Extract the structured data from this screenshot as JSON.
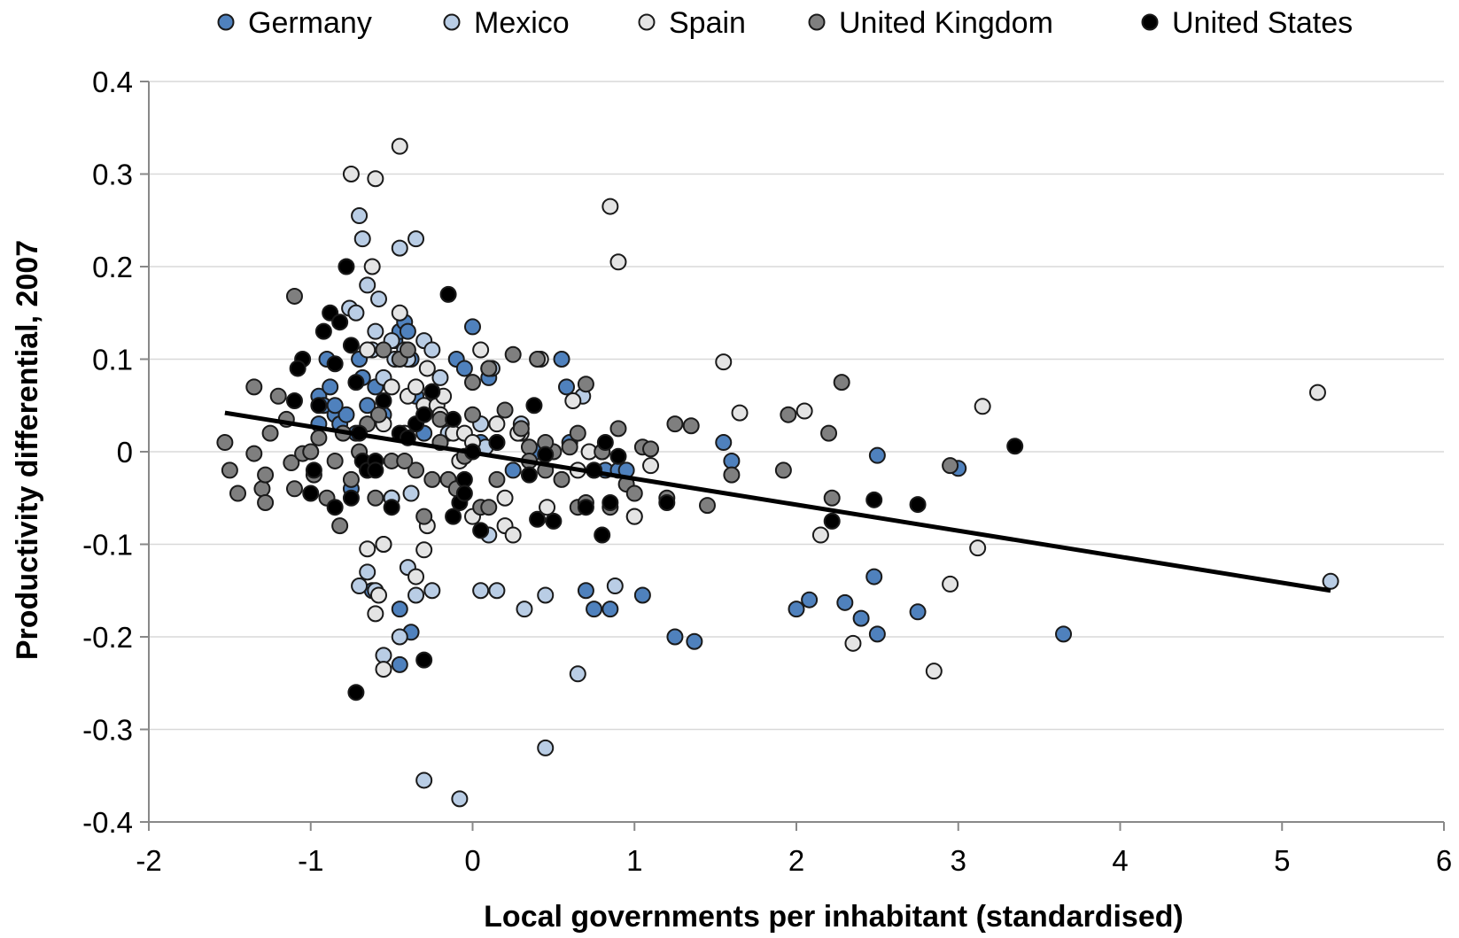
{
  "chart_data": {
    "type": "scatter",
    "title": "",
    "xlabel": "Local governments per inhabitant (standardised)",
    "ylabel": "Productivity differential, 2007",
    "xlim": [
      -2,
      6
    ],
    "ylim": [
      -0.4,
      0.4
    ],
    "x_ticks": [
      -2,
      -1,
      0,
      1,
      2,
      3,
      4,
      5,
      6
    ],
    "y_ticks": [
      -0.4,
      -0.3,
      -0.2,
      -0.1,
      0,
      0.1,
      0.2,
      0.3,
      0.4
    ],
    "x_tick_labels": [
      "-2",
      "-1",
      "0",
      "1",
      "2",
      "3",
      "4",
      "5",
      "6"
    ],
    "y_tick_labels": [
      "-0.4",
      "-0.3",
      "-0.2",
      "-0.1",
      "0",
      "0.1",
      "0.2",
      "0.3",
      "0.4"
    ],
    "grid": "horizontal",
    "legend_position": "top",
    "trendline": {
      "x": [
        -1.53,
        5.3
      ],
      "y": [
        0.042,
        -0.15
      ]
    },
    "series": [
      {
        "name": "Germany",
        "color": "#4f81bd",
        "x": [
          -0.95,
          -0.92,
          -0.9,
          -0.88,
          -0.85,
          -0.82,
          -0.78,
          -0.75,
          -0.72,
          -0.7,
          -0.68,
          -0.65,
          -0.6,
          -0.55,
          -0.5,
          -0.48,
          -0.45,
          -0.42,
          -0.4,
          -0.38,
          -0.35,
          -0.3,
          -0.25,
          -0.2,
          -0.1,
          -0.05,
          0,
          0.05,
          0.1,
          0.15,
          0.25,
          0.4,
          0.55,
          0.58,
          0.6,
          0.7,
          0.75,
          0.8,
          0.82,
          0.85,
          0.9,
          0.95,
          1.05,
          1.25,
          1.37,
          1.55,
          1.6,
          2.0,
          2.08,
          2.3,
          2.4,
          2.48,
          2.5,
          2.5,
          2.75,
          3.0,
          3.65,
          -0.45,
          -0.38,
          -0.45,
          -0.62,
          -0.85,
          -0.95
        ],
        "y": [
          0.06,
          0.05,
          0.1,
          0.07,
          0.04,
          0.03,
          0.04,
          -0.04,
          0.02,
          0.1,
          0.08,
          0.05,
          0.07,
          0.04,
          -0.05,
          0.12,
          0.13,
          0.14,
          0.13,
          0.1,
          0.06,
          0.02,
          0.05,
          0.01,
          0.1,
          0.09,
          0.135,
          0.01,
          0.08,
          0.01,
          -0.02,
          0.0,
          0.1,
          0.07,
          0.01,
          -0.15,
          -0.17,
          0.0,
          -0.02,
          -0.17,
          -0.02,
          -0.02,
          -0.155,
          -0.2,
          -0.205,
          0.01,
          -0.01,
          -0.17,
          -0.16,
          -0.163,
          -0.18,
          -0.135,
          -0.197,
          -0.004,
          -0.173,
          -0.018,
          -0.197,
          -0.17,
          -0.195,
          -0.23,
          -0.15,
          0.05,
          0.03
        ]
      },
      {
        "name": "Mexico",
        "color": "#b9cde5",
        "x": [
          -0.76,
          -0.72,
          -0.7,
          -0.68,
          -0.65,
          -0.62,
          -0.6,
          -0.58,
          -0.55,
          -0.5,
          -0.48,
          -0.45,
          -0.42,
          -0.4,
          -0.35,
          -0.3,
          -0.25,
          -0.2,
          -0.15,
          0.05,
          0.08,
          0.1,
          0.15,
          0.32,
          0.45,
          0.65,
          0.88,
          1.0,
          0.45,
          -0.3,
          -0.08,
          0.12,
          -0.55,
          -0.65,
          -0.7,
          -0.45,
          -0.35,
          -0.25,
          -0.4,
          -0.5,
          0.3,
          0.68,
          0.05,
          5.3,
          -0.38,
          -0.6,
          -0.55
        ],
        "y": [
          0.155,
          0.15,
          0.255,
          0.23,
          0.18,
          0.11,
          0.13,
          0.165,
          0.08,
          0.12,
          0.1,
          0.22,
          0.11,
          0.1,
          0.23,
          0.12,
          0.11,
          0.08,
          0.02,
          0.03,
          0.005,
          -0.09,
          -0.15,
          -0.17,
          -0.155,
          -0.24,
          -0.145,
          -0.07,
          -0.32,
          -0.355,
          -0.375,
          0.09,
          -0.1,
          -0.13,
          -0.145,
          -0.2,
          -0.155,
          -0.15,
          -0.125,
          -0.05,
          0.03,
          0.06,
          -0.15,
          -0.14,
          -0.045,
          -0.15,
          -0.22
        ]
      },
      {
        "name": "Spain",
        "color": "#e4e4e4",
        "x": [
          -0.75,
          -0.6,
          -0.62,
          -0.65,
          -0.55,
          -0.5,
          -0.45,
          -0.4,
          -0.35,
          -0.3,
          -0.28,
          -0.22,
          -0.18,
          -0.12,
          -0.08,
          -0.05,
          0.0,
          0.05,
          0.1,
          0.15,
          0.2,
          0.25,
          0.3,
          0.42,
          0.46,
          0.62,
          0.65,
          0.72,
          0.85,
          0.9,
          1.0,
          1.1,
          1.55,
          1.65,
          2.05,
          2.15,
          2.35,
          2.85,
          2.95,
          3.12,
          3.15,
          5.22,
          -0.6,
          -0.58,
          -0.55,
          -0.45,
          -0.35,
          -0.3,
          -0.28,
          -0.2,
          0.0,
          0.2,
          0.28,
          -0.65,
          -0.55,
          -0.42
        ],
        "y": [
          0.3,
          0.295,
          0.2,
          0.11,
          0.03,
          0.07,
          0.33,
          0.06,
          0.07,
          0.05,
          0.09,
          0.05,
          0.06,
          0.02,
          -0.01,
          0.02,
          0.01,
          0.11,
          0.09,
          0.03,
          -0.08,
          -0.09,
          0.02,
          0.1,
          -0.06,
          0.055,
          -0.02,
          0.0,
          0.265,
          0.205,
          -0.07,
          -0.015,
          0.097,
          0.042,
          0.044,
          -0.09,
          -0.207,
          -0.237,
          -0.143,
          -0.104,
          0.049,
          0.064,
          -0.175,
          -0.155,
          -0.1,
          0.15,
          -0.135,
          -0.106,
          -0.08,
          0.04,
          -0.07,
          -0.05,
          0.02,
          -0.105,
          -0.235,
          0.02
        ]
      },
      {
        "name": "United Kingdom",
        "color": "#7f7f7f",
        "x": [
          -1.53,
          -1.5,
          -1.45,
          -1.35,
          -1.3,
          -1.28,
          -1.25,
          -1.2,
          -1.15,
          -1.12,
          -1.1,
          -1.05,
          -1.0,
          -0.98,
          -0.95,
          -0.9,
          -0.85,
          -0.8,
          -0.75,
          -0.7,
          -0.65,
          -0.6,
          -0.55,
          -0.5,
          -0.45,
          -0.4,
          -0.35,
          -0.3,
          -0.25,
          -0.2,
          -0.15,
          -0.1,
          -0.05,
          0.0,
          0.05,
          0.1,
          0.15,
          0.2,
          0.25,
          0.3,
          0.35,
          0.4,
          0.45,
          0.5,
          0.55,
          0.6,
          0.65,
          0.7,
          0.75,
          0.8,
          0.85,
          0.9,
          0.95,
          1.0,
          1.05,
          1.1,
          1.2,
          1.25,
          1.35,
          1.45,
          1.6,
          1.92,
          1.95,
          2.2,
          2.22,
          2.28,
          2.95,
          -1.1,
          -0.65,
          -0.58,
          -0.42,
          -0.3,
          -0.2,
          0.0,
          0.1,
          0.35,
          0.45,
          0.65,
          0.7,
          -0.82,
          -1.28,
          -1.35
        ],
        "y": [
          0.01,
          -0.02,
          -0.045,
          -0.002,
          -0.04,
          -0.055,
          0.02,
          0.06,
          0.035,
          -0.012,
          -0.04,
          -0.002,
          0.0,
          -0.025,
          0.015,
          -0.05,
          -0.01,
          0.02,
          -0.03,
          0.0,
          0.03,
          -0.05,
          0.11,
          -0.01,
          0.1,
          0.11,
          -0.02,
          0.04,
          -0.03,
          0.01,
          -0.03,
          -0.04,
          -0.005,
          0.04,
          -0.06,
          0.09,
          -0.03,
          0.045,
          0.105,
          0.025,
          0.005,
          0.1,
          -0.02,
          0.0,
          -0.03,
          0.005,
          0.02,
          0.073,
          -0.02,
          0.0,
          -0.06,
          0.025,
          -0.035,
          -0.045,
          0.005,
          0.003,
          -0.05,
          0.03,
          0.028,
          -0.058,
          -0.025,
          -0.02,
          0.04,
          0.02,
          -0.05,
          0.075,
          -0.015,
          0.168,
          -0.02,
          0.04,
          -0.01,
          -0.07,
          0.035,
          0.075,
          -0.06,
          -0.01,
          0.01,
          -0.06,
          -0.055,
          -0.08,
          -0.025,
          0.07
        ]
      },
      {
        "name": "United States",
        "color": "#000000",
        "x": [
          -1.1,
          -1.05,
          -1.0,
          -0.98,
          -0.95,
          -0.92,
          -0.88,
          -0.85,
          -0.82,
          -0.78,
          -0.75,
          -0.72,
          -0.7,
          -0.68,
          -0.65,
          -0.6,
          -0.55,
          -0.5,
          -0.45,
          -0.4,
          -0.35,
          -0.3,
          -0.25,
          -0.15,
          -0.12,
          -0.08,
          -0.05,
          0.0,
          0.05,
          0.15,
          0.35,
          0.38,
          0.4,
          0.45,
          0.5,
          0.7,
          0.75,
          0.8,
          0.82,
          0.85,
          0.9,
          1.2,
          2.22,
          2.48,
          2.75,
          3.35,
          -0.72,
          -0.3,
          -0.6,
          -0.12,
          -0.05,
          -1.08,
          -0.85,
          -0.75
        ],
        "y": [
          0.055,
          0.1,
          -0.045,
          -0.02,
          0.05,
          0.13,
          0.15,
          0.095,
          0.14,
          0.2,
          0.115,
          0.075,
          0.02,
          -0.01,
          -0.02,
          -0.01,
          0.055,
          -0.06,
          0.02,
          0.015,
          0.03,
          -0.225,
          0.065,
          0.17,
          -0.07,
          -0.055,
          -0.03,
          0.0,
          -0.085,
          0.01,
          -0.025,
          0.05,
          -0.073,
          -0.003,
          -0.075,
          -0.06,
          -0.02,
          -0.09,
          0.01,
          -0.055,
          -0.005,
          -0.055,
          -0.075,
          -0.052,
          -0.057,
          0.006,
          -0.26,
          0.04,
          -0.02,
          0.035,
          -0.045,
          0.09,
          -0.06,
          -0.05
        ]
      }
    ]
  }
}
